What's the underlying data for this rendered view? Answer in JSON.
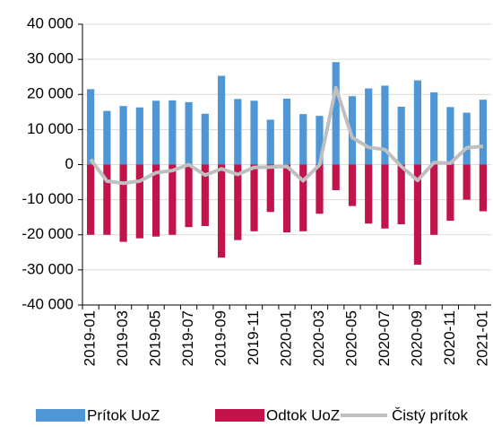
{
  "chart_data": {
    "type": "bar",
    "categories": [
      "2019-01",
      null,
      "2019-03",
      null,
      "2019-05",
      null,
      "2019-07",
      null,
      "2019-09",
      null,
      "2019-11",
      null,
      "2020-01",
      null,
      "2020-03",
      null,
      "2020-05",
      null,
      "2020-07",
      null,
      "2020-09",
      null,
      "2020-11",
      null,
      "2021-01"
    ],
    "series": [
      {
        "name": "Prítok UoZ",
        "type": "bar",
        "color": "#4f96d6",
        "values": [
          21500,
          15300,
          16700,
          16300,
          18200,
          18300,
          17800,
          14500,
          25300,
          18700,
          18200,
          12800,
          18800,
          14400,
          13900,
          29200,
          19500,
          21700,
          22500,
          16500,
          24000,
          20600,
          16400,
          14800,
          18500
        ]
      },
      {
        "name": "Odtok UoZ",
        "type": "bar",
        "color": "#c0144a",
        "values": [
          -20000,
          -20000,
          -22000,
          -21000,
          -20500,
          -20000,
          -17800,
          -17500,
          -26500,
          -21500,
          -19000,
          -13500,
          -19300,
          -19000,
          -14000,
          -7300,
          -11800,
          -16800,
          -18200,
          -17000,
          -28500,
          -20000,
          -16000,
          -10000,
          -13300
        ]
      },
      {
        "name": "Čistý prítok",
        "type": "line",
        "color": "#bfbfbf",
        "values": [
          1500,
          -4700,
          -5300,
          -4700,
          -2300,
          -1700,
          0,
          -3000,
          -1200,
          -2800,
          -800,
          -700,
          -500,
          -4600,
          -100,
          21900,
          7700,
          4900,
          4300,
          -500,
          -4500,
          600,
          400,
          4800,
          5200
        ]
      }
    ],
    "ylim": [
      -40000,
      40000
    ],
    "yticks": [
      {
        "value": -40000,
        "label": "-40 000"
      },
      {
        "value": -30000,
        "label": "-30 000"
      },
      {
        "value": -20000,
        "label": "-20 000"
      },
      {
        "value": -10000,
        "label": "-10 000"
      },
      0,
      {
        "value": 10000,
        "label": "10 000"
      },
      {
        "value": 20000,
        "label": "20 000"
      },
      {
        "value": 30000,
        "label": "30 000"
      },
      {
        "value": 40000,
        "label": "40 000"
      }
    ],
    "grid": true
  }
}
